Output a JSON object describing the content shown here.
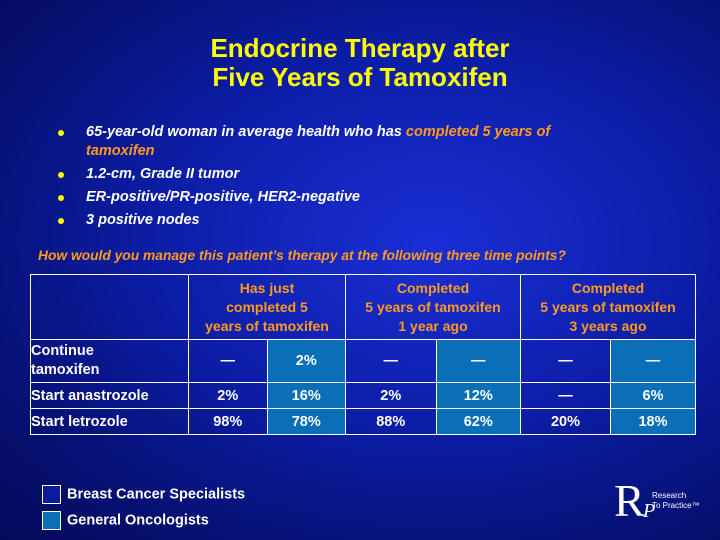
{
  "slide": {
    "title_line1": "Endocrine Therapy after",
    "title_line2": "Five Years of Tamoxifen"
  },
  "bullets": [
    {
      "pre": "65-year-old woman in average health who has ",
      "highlight": "completed 5 years of tamoxifen"
    },
    {
      "pre": "1.2-cm, Grade II tumor",
      "highlight": ""
    },
    {
      "pre": "ER-positive/PR-positive, HER2-negative",
      "highlight": ""
    },
    {
      "pre": "3 positive nodes",
      "highlight": ""
    }
  ],
  "question": "How would you manage this patient’s therapy at the following three time points?",
  "table": {
    "headers": [
      {
        "line1": "Has just",
        "line2": "completed 5",
        "line3": "years of tamoxifen"
      },
      {
        "line1": "Completed",
        "line2": "5 years of tamoxifen",
        "line3": "1 year ago"
      },
      {
        "line1": "Completed",
        "line2": "5 years of tamoxifen",
        "line3": "3 years ago"
      }
    ],
    "rows": [
      {
        "label_line1": "Continue",
        "label_line2": "tamoxifen",
        "values": [
          "—",
          "2%",
          "—",
          "—",
          "—",
          "—"
        ]
      },
      {
        "label_line1": "Start anastrozole",
        "label_line2": "",
        "values": [
          "2%",
          "16%",
          "2%",
          "12%",
          "—",
          "6%"
        ]
      },
      {
        "label_line1": "Start letrozole",
        "label_line2": "",
        "values": [
          "98%",
          "78%",
          "88%",
          "62%",
          "20%",
          "18%"
        ]
      }
    ]
  },
  "legend": {
    "bcs": "Breast Cancer Specialists",
    "go": "General Oncologists"
  },
  "logo": {
    "letter_r": "R",
    "letter_p": "P",
    "line1": "Research",
    "line2": "To Practice™"
  },
  "colors": {
    "title": "#ffff00",
    "highlight": "#ff9a1f",
    "go_cell": "#0a6fb6",
    "background": "#0c1da6"
  }
}
